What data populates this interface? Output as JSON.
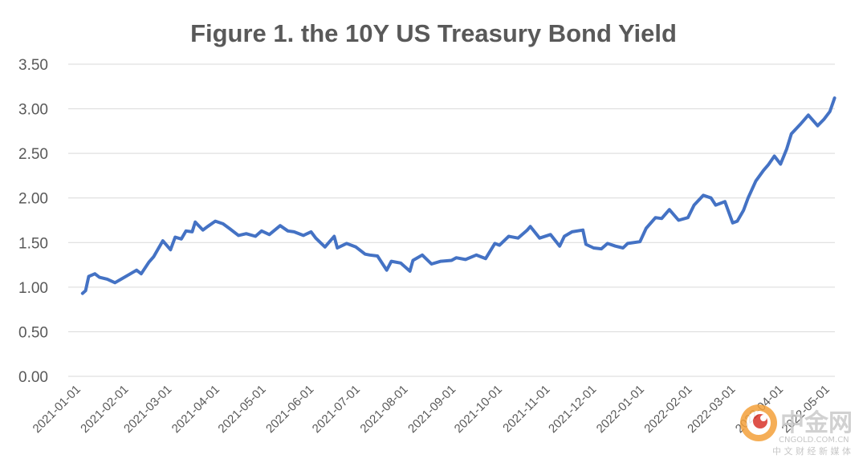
{
  "chart_data": {
    "type": "line",
    "title": "Figure 1. the 10Y US Treasury Bond Yield",
    "xlabel": "",
    "ylabel": "",
    "ylim": [
      0,
      3.5
    ],
    "yticks": [
      "0.00",
      "0.50",
      "1.00",
      "1.50",
      "2.00",
      "2.50",
      "3.00",
      "3.50"
    ],
    "xticks": [
      "2021-01-01",
      "2021-02-01",
      "2021-03-01",
      "2021-04-01",
      "2021-05-01",
      "2021-06-01",
      "2021-07-01",
      "2021-08-01",
      "2021-09-01",
      "2021-10-01",
      "2021-11-01",
      "2021-12-01",
      "2022-01-01",
      "2022-02-01",
      "2022-03-01",
      "2022-04-01",
      "2022-05-01"
    ],
    "grid": true,
    "legend": "none",
    "line_color": "#4472c4",
    "series": [
      {
        "x": [
          "2021-01-04",
          "2021-01-06",
          "2021-01-08",
          "2021-01-12",
          "2021-01-15",
          "2021-01-20",
          "2021-01-25",
          "2021-01-29",
          "2021-02-03",
          "2021-02-08",
          "2021-02-11",
          "2021-02-16",
          "2021-02-19",
          "2021-02-25",
          "2021-03-02",
          "2021-03-05",
          "2021-03-09",
          "2021-03-12",
          "2021-03-16",
          "2021-03-18",
          "2021-03-23",
          "2021-03-26",
          "2021-03-31",
          "2021-04-05",
          "2021-04-09",
          "2021-04-15",
          "2021-04-20",
          "2021-04-26",
          "2021-04-30",
          "2021-05-05",
          "2021-05-12",
          "2021-05-17",
          "2021-05-21",
          "2021-05-27",
          "2021-06-01",
          "2021-06-04",
          "2021-06-10",
          "2021-06-16",
          "2021-06-18",
          "2021-06-24",
          "2021-06-30",
          "2021-07-06",
          "2021-07-09",
          "2021-07-14",
          "2021-07-20",
          "2021-07-23",
          "2021-07-29",
          "2021-08-04",
          "2021-08-06",
          "2021-08-12",
          "2021-08-18",
          "2021-08-24",
          "2021-08-31",
          "2021-09-03",
          "2021-09-09",
          "2021-09-16",
          "2021-09-22",
          "2021-09-28",
          "2021-10-01",
          "2021-10-07",
          "2021-10-13",
          "2021-10-19",
          "2021-10-21",
          "2021-10-27",
          "2021-11-03",
          "2021-11-09",
          "2021-11-12",
          "2021-11-17",
          "2021-11-24",
          "2021-11-26",
          "2021-12-01",
          "2021-12-06",
          "2021-12-10",
          "2021-12-15",
          "2021-12-20",
          "2021-12-23",
          "2021-12-31",
          "2022-01-04",
          "2022-01-10",
          "2022-01-14",
          "2022-01-19",
          "2022-01-25",
          "2022-01-31",
          "2022-02-04",
          "2022-02-10",
          "2022-02-15",
          "2022-02-18",
          "2022-02-24",
          "2022-03-01",
          "2022-03-04",
          "2022-03-08",
          "2022-03-11",
          "2022-03-16",
          "2022-03-21",
          "2022-03-24",
          "2022-03-28",
          "2022-04-01",
          "2022-04-05",
          "2022-04-08",
          "2022-04-14",
          "2022-04-19",
          "2022-04-25",
          "2022-04-29",
          "2022-05-03",
          "2022-05-06"
        ],
        "values": [
          0.93,
          0.96,
          1.12,
          1.15,
          1.11,
          1.09,
          1.05,
          1.09,
          1.14,
          1.19,
          1.15,
          1.28,
          1.34,
          1.52,
          1.42,
          1.56,
          1.54,
          1.63,
          1.62,
          1.73,
          1.64,
          1.68,
          1.74,
          1.71,
          1.66,
          1.58,
          1.6,
          1.57,
          1.63,
          1.59,
          1.69,
          1.63,
          1.62,
          1.58,
          1.62,
          1.55,
          1.45,
          1.57,
          1.44,
          1.49,
          1.45,
          1.37,
          1.36,
          1.35,
          1.19,
          1.29,
          1.27,
          1.18,
          1.3,
          1.36,
          1.26,
          1.29,
          1.3,
          1.33,
          1.31,
          1.36,
          1.32,
          1.49,
          1.47,
          1.57,
          1.55,
          1.64,
          1.68,
          1.55,
          1.59,
          1.46,
          1.57,
          1.62,
          1.64,
          1.48,
          1.44,
          1.43,
          1.49,
          1.46,
          1.44,
          1.49,
          1.51,
          1.66,
          1.78,
          1.77,
          1.87,
          1.75,
          1.78,
          1.92,
          2.03,
          2.0,
          1.92,
          1.96,
          1.72,
          1.74,
          1.86,
          2.0,
          2.19,
          2.31,
          2.37,
          2.47,
          2.38,
          2.55,
          2.72,
          2.83,
          2.93,
          2.81,
          2.88,
          2.97,
          3.12
        ]
      }
    ]
  },
  "watermark": {
    "brand": "中金网",
    "site": "CNGOLD.COM.CN",
    "tagline": "中 文 财 经 新 媒 体"
  }
}
